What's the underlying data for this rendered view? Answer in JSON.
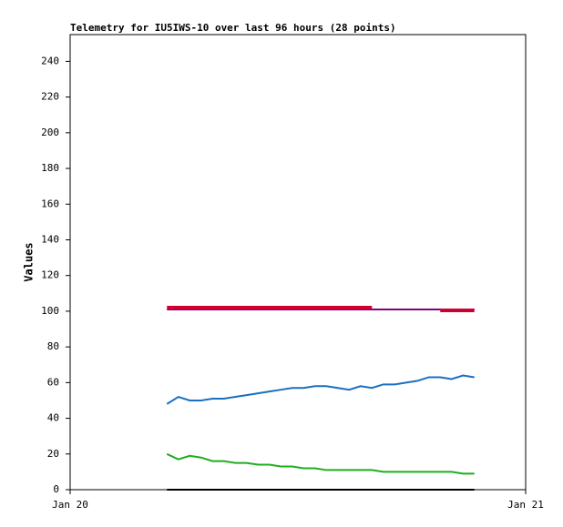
{
  "chart_data": {
    "type": "line",
    "title": "Telemetry for IU5IWS-10 over last 96 hours (28 points)",
    "y_label": "Values",
    "x": [
      5.1,
      5.7,
      6.3,
      6.9,
      7.5,
      8.1,
      8.7,
      9.3,
      9.9,
      10.5,
      11.1,
      11.7,
      12.3,
      12.9,
      13.5,
      14.1,
      14.7,
      15.3,
      15.9,
      16.5,
      17.1,
      17.7,
      18.3,
      18.9,
      19.5,
      20.1,
      20.7,
      21.3
    ],
    "xlim": [
      0,
      24
    ],
    "xticks": [
      {
        "value": 0,
        "label": "Jan 20"
      },
      {
        "value": 24,
        "label": "Jan 21"
      }
    ],
    "ylim": [
      0,
      255
    ],
    "yticks": [
      0,
      20,
      40,
      60,
      80,
      100,
      120,
      140,
      160,
      180,
      200,
      220,
      240
    ],
    "series": [
      {
        "color": "#800080",
        "values": [
          101,
          101,
          101,
          101,
          101,
          101,
          101,
          101,
          101,
          101,
          101,
          101,
          101,
          101,
          101,
          101,
          101,
          101,
          101,
          101,
          101,
          101,
          101,
          101,
          101,
          101,
          101,
          101
        ]
      },
      {
        "color": "#cc0033",
        "values": [
          102,
          102,
          102,
          102,
          102,
          102,
          102,
          102,
          102,
          102,
          102,
          102,
          102,
          102,
          102,
          102,
          102,
          102,
          102,
          null,
          null,
          null,
          null,
          null,
          100.5,
          100.5,
          100.5,
          100.5
        ]
      },
      {
        "color": "#1a6fc0",
        "values": [
          48,
          52,
          50,
          50,
          51,
          51,
          52,
          53,
          54,
          55,
          56,
          57,
          57,
          58,
          58,
          57,
          56,
          58,
          57,
          59,
          59,
          60,
          61,
          63,
          63,
          62,
          64,
          63
        ]
      },
      {
        "color": "#1fae1f",
        "values": [
          20,
          17,
          19,
          18,
          16,
          16,
          15,
          15,
          14,
          14,
          13,
          13,
          12,
          12,
          11,
          11,
          11,
          11,
          11,
          10,
          10,
          10,
          10,
          10,
          10,
          10,
          9,
          9
        ]
      },
      {
        "color": "#000000",
        "values": [
          0,
          0,
          0,
          0,
          0,
          0,
          0,
          0,
          0,
          0,
          0,
          0,
          0,
          0,
          0,
          0,
          0,
          0,
          0,
          0,
          0,
          0,
          0,
          0,
          0,
          0,
          0,
          0
        ]
      }
    ]
  }
}
